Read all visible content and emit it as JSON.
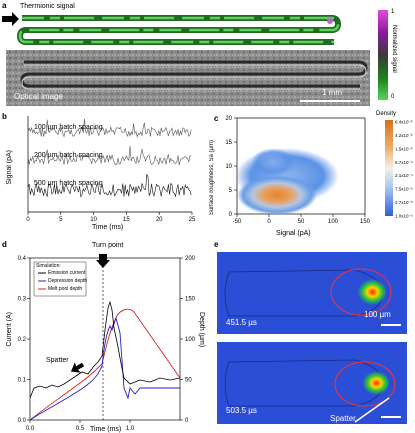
{
  "panel_a": {
    "letter": "a",
    "thermionic_label": "Thermionic signal",
    "optical_label": "Optical image",
    "scale_bar": "1 mm",
    "colorbar": {
      "label": "Normalized signal",
      "max": "1",
      "min": "0",
      "colors": [
        "#e14bd8",
        "#8a1aa0",
        "#3a3a3a",
        "#1e7d1e",
        "#56d456"
      ]
    }
  },
  "panel_b": {
    "letter": "b",
    "chart_data": {
      "type": "line",
      "series": [
        {
          "name": "100 µm hatch spacing"
        },
        {
          "name": "200 µm hatch spacing"
        },
        {
          "name": "500 µm hatch spacing"
        }
      ],
      "xlabel": "Time (ms)",
      "ylabel": "Signal (pA)",
      "xlim": [
        0,
        25
      ],
      "xticks": [
        "0",
        "5",
        "10",
        "15",
        "20",
        "25"
      ]
    }
  },
  "panel_c": {
    "letter": "c",
    "chart_data": {
      "type": "heatmap",
      "xlabel": "Signal (pA)",
      "ylabel": "Surface roughness, Sa (µm)",
      "xlim": [
        -50,
        150
      ],
      "ylim": [
        0,
        20
      ],
      "xticks": [
        "-50",
        "0",
        "50",
        "100",
        "150"
      ],
      "yticks": [
        "0",
        "5",
        "10",
        "15",
        "20"
      ],
      "colorbar_title": "Density",
      "colorbar_ticks": [
        "6.4x10⁻³",
        "4.2x10⁻³",
        "1.5x10⁻³",
        "5.7x10⁻⁴",
        "2.1x10⁻⁴",
        "7.5x10⁻⁵",
        "2.7x10⁻⁵",
        "1.0x10⁻⁵"
      ],
      "peak": {
        "x": 10,
        "y": 3
      }
    }
  },
  "panel_d": {
    "letter": "d",
    "chart_data": {
      "type": "line",
      "xlabel": "Time (ms)",
      "ylabel_left": "Current (A)",
      "ylabel_right": "Depth (µm)",
      "xlim": [
        0.0,
        1.5
      ],
      "ylim_left": [
        0.0,
        0.4
      ],
      "ylim_right": [
        0,
        200
      ],
      "xticks": [
        "0.0",
        "0.5",
        "1.0"
      ],
      "yticks_left": [
        "0.0",
        "0.1",
        "0.2",
        "0.3",
        "0.4"
      ],
      "yticks_right": [
        "0",
        "50",
        "100",
        "150",
        "200"
      ],
      "legend_title": "Simulation:",
      "series": [
        {
          "name": "Emission current",
          "color": "#000000"
        },
        {
          "name": "Depression depth",
          "color": "#2222cc"
        },
        {
          "name": "Melt pool depth",
          "color": "#dd2222"
        }
      ],
      "annotations": [
        "Turn point",
        "Spatter"
      ]
    }
  },
  "panel_e": {
    "letter": "e",
    "top_time": "451.5 µs",
    "bottom_time": "503.5 µs",
    "scale_bar": "100 µm",
    "spatter_label": "Spatter"
  }
}
